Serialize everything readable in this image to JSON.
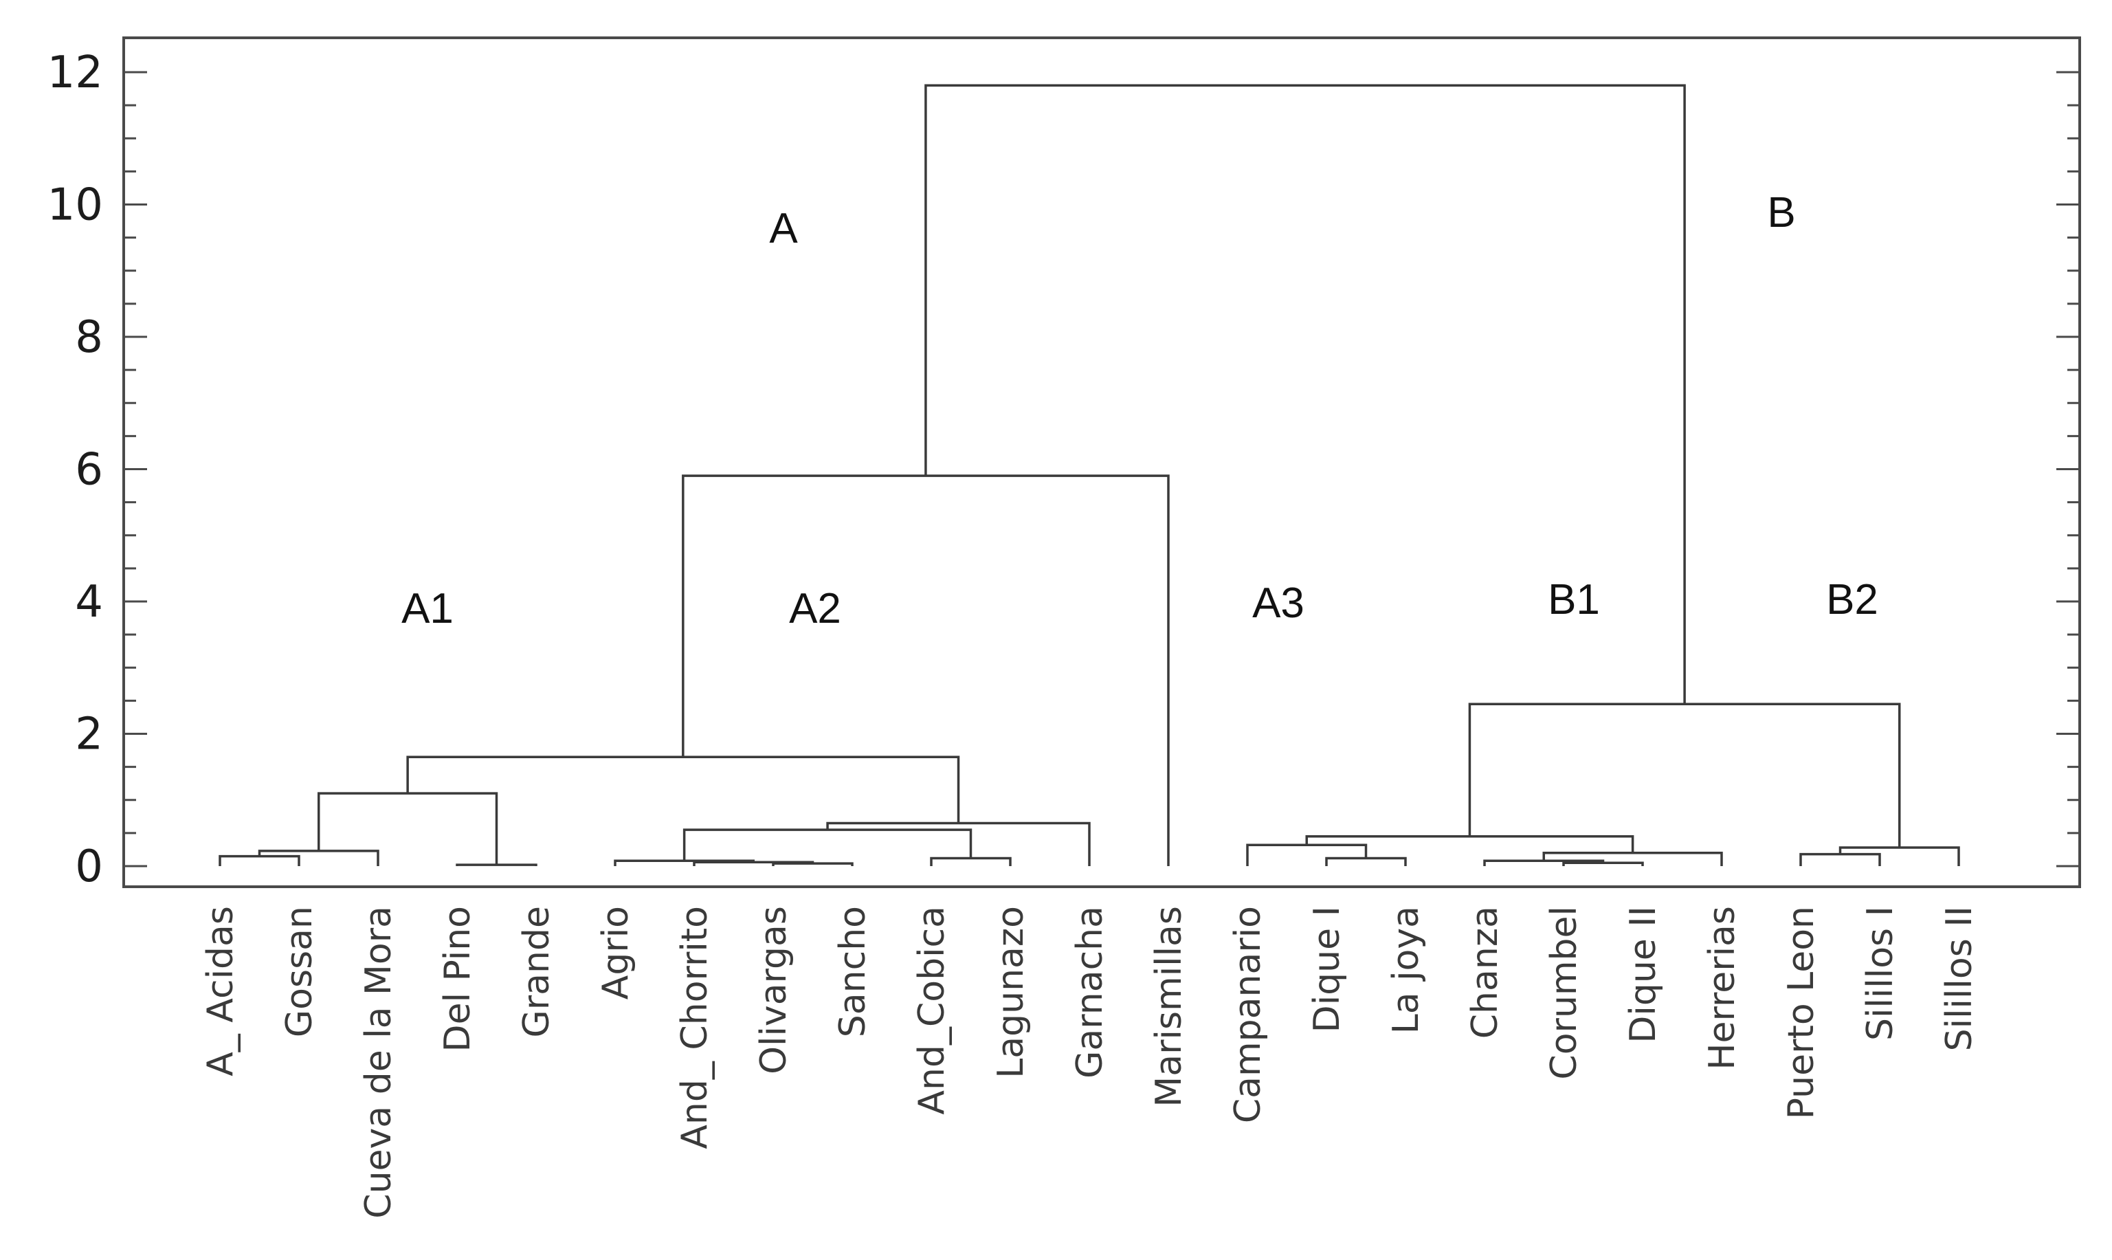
{
  "chart_data": {
    "type": "dendrogram",
    "ylim": [
      0,
      12
    ],
    "y_ticks": [
      0,
      2,
      4,
      6,
      8,
      10,
      12
    ],
    "y_tick_labels": [
      "0",
      "2",
      "4",
      "6",
      "8",
      "10",
      "12"
    ],
    "leaves": [
      "A_ Acidas",
      "Gossan",
      "Cueva de la Mora",
      "Del Pino",
      "Grande",
      "Agrio",
      "And_ Chorrito",
      "Olivargas",
      "Sancho",
      "And_Cobica",
      "Lagunazo",
      "Garnacha",
      "Marismillas",
      "Campanario",
      "Dique I",
      "La joya",
      "Chanza",
      "Corumbel",
      "Dique II",
      "Herrerias",
      "Puerto Leon",
      "Silillos I",
      "Silillos II"
    ],
    "merges": [
      {
        "left": "A_ Acidas",
        "right": "Gossan",
        "height": 0.15
      },
      {
        "left": "Del Pino",
        "right": "Grande",
        "height": 0.02
      },
      {
        "left": "Olivargas",
        "right": "Sancho",
        "height": 0.04
      },
      {
        "left": "And_ Chorrito",
        "right": "m3",
        "height": 0.06
      },
      {
        "left": "Agrio",
        "right": "m4",
        "height": 0.08
      },
      {
        "left": "And_Cobica",
        "right": "Lagunazo",
        "height": 0.12
      },
      {
        "left": "Corumbel",
        "right": "Dique II",
        "height": 0.05
      },
      {
        "left": "Chanza",
        "right": "m7",
        "height": 0.08
      },
      {
        "left": "Dique I",
        "right": "La joya",
        "height": 0.12
      },
      {
        "left": "Puerto Leon",
        "right": "Silillos I",
        "height": 0.18
      },
      {
        "left": "m1",
        "right": "Cueva de la Mora",
        "height": 0.23
      },
      {
        "left": "m8",
        "right": "Herrerias",
        "height": 0.2
      },
      {
        "left": "m10",
        "right": "Silillos II",
        "height": 0.28
      },
      {
        "left": "Campanario",
        "right": "m9",
        "height": 0.32
      },
      {
        "left": "m14",
        "right": "m12",
        "height": 0.45
      },
      {
        "left": "m5",
        "right": "m6",
        "height": 0.55
      },
      {
        "left": "m16",
        "right": "Garnacha",
        "height": 0.65
      },
      {
        "left": "m11",
        "right": "m2",
        "height": 1.1
      },
      {
        "left": "m18",
        "right": "m17",
        "height": 1.65
      },
      {
        "left": "m15",
        "right": "m13",
        "height": 2.45
      },
      {
        "left": "m19",
        "right": "Marismillas",
        "height": 5.9
      },
      {
        "left": "m21",
        "right": "m20",
        "height": 11.8
      }
    ],
    "group_labels": [
      "A",
      "B",
      "A1",
      "A2",
      "A3",
      "B1",
      "B2"
    ]
  }
}
